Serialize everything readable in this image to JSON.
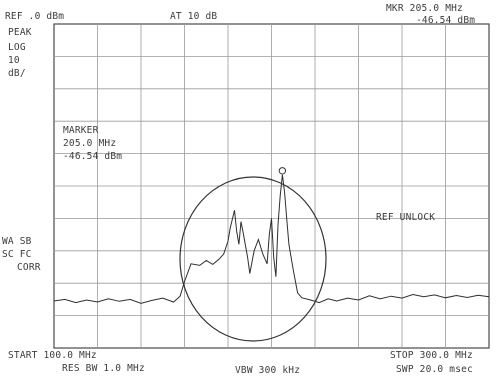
{
  "header": {
    "ref": "REF .0 dBm",
    "atten": "AT 10 dB",
    "mkr_freq": "MKR 205.0 MHz",
    "mkr_level": "-46.54 dBm"
  },
  "left_labels": {
    "peak": "PEAK",
    "log": "LOG",
    "scale_value": "10",
    "scale_unit": "dB/",
    "wa": "WA SB",
    "sc": "SC FC",
    "corr": "CORR"
  },
  "marker_box": {
    "title": "MARKER",
    "freq": "205.0 MHz",
    "level": "-46.54 dBm"
  },
  "status": {
    "ref_unlock": "REF UNLOCK"
  },
  "footer": {
    "start": "START 100.0 MHz",
    "stop": "STOP 300.0 MHz",
    "rbw": "RES BW 1.0 MHz",
    "vbw": "VBW 300 kHz",
    "swp": "SWP 20.0 msec"
  },
  "chart_data": {
    "type": "line",
    "x_range_mhz": [
      100,
      300
    ],
    "y_range_dbm": [
      -100,
      0
    ],
    "y_scale_db_per_div": 10,
    "grid": true,
    "grid_divisions": {
      "x": 10,
      "y": 10
    },
    "marker": {
      "x": 205,
      "y": -46.54
    },
    "annotation": "circle around signal region (~180–240 MHz)",
    "series": [
      {
        "points": [
          [
            100,
            -85.5
          ],
          [
            105,
            -85.0
          ],
          [
            110,
            -86.0
          ],
          [
            115,
            -85.2
          ],
          [
            120,
            -85.8
          ],
          [
            125,
            -84.8
          ],
          [
            130,
            -85.6
          ],
          [
            135,
            -85.0
          ],
          [
            140,
            -86.2
          ],
          [
            145,
            -85.3
          ],
          [
            150,
            -84.6
          ],
          [
            155,
            -85.8
          ],
          [
            158,
            -84.0
          ],
          [
            160,
            -79.5
          ],
          [
            163,
            -74.0
          ],
          [
            167,
            -74.5
          ],
          [
            170,
            -73.0
          ],
          [
            173,
            -74.2
          ],
          [
            176,
            -72.5
          ],
          [
            178,
            -71.0
          ],
          [
            180,
            -67.0
          ],
          [
            181,
            -63.0
          ],
          [
            183,
            -57.5
          ],
          [
            184,
            -64.0
          ],
          [
            185,
            -68.0
          ],
          [
            186,
            -61.0
          ],
          [
            187,
            -64.5
          ],
          [
            189,
            -72.0
          ],
          [
            190,
            -77.0
          ],
          [
            192,
            -70.0
          ],
          [
            194,
            -66.5
          ],
          [
            196,
            -71.0
          ],
          [
            198,
            -74.0
          ],
          [
            199,
            -65.0
          ],
          [
            200,
            -60.0
          ],
          [
            201,
            -72.0
          ],
          [
            202,
            -78.0
          ],
          [
            203,
            -62.0
          ],
          [
            204,
            -53.0
          ],
          [
            205,
            -46.54
          ],
          [
            206,
            -52.0
          ],
          [
            207,
            -60.0
          ],
          [
            208,
            -68.0
          ],
          [
            210,
            -76.0
          ],
          [
            212,
            -83.0
          ],
          [
            214,
            -84.5
          ],
          [
            218,
            -85.2
          ],
          [
            222,
            -86.0
          ],
          [
            226,
            -84.8
          ],
          [
            230,
            -85.5
          ],
          [
            235,
            -84.6
          ],
          [
            240,
            -85.2
          ],
          [
            245,
            -83.9
          ],
          [
            250,
            -84.8
          ],
          [
            255,
            -84.0
          ],
          [
            260,
            -84.6
          ],
          [
            265,
            -83.5
          ],
          [
            270,
            -84.2
          ],
          [
            275,
            -83.6
          ],
          [
            280,
            -84.5
          ],
          [
            285,
            -83.8
          ],
          [
            290,
            -84.4
          ],
          [
            295,
            -83.7
          ],
          [
            300,
            -84.2
          ]
        ]
      }
    ]
  }
}
